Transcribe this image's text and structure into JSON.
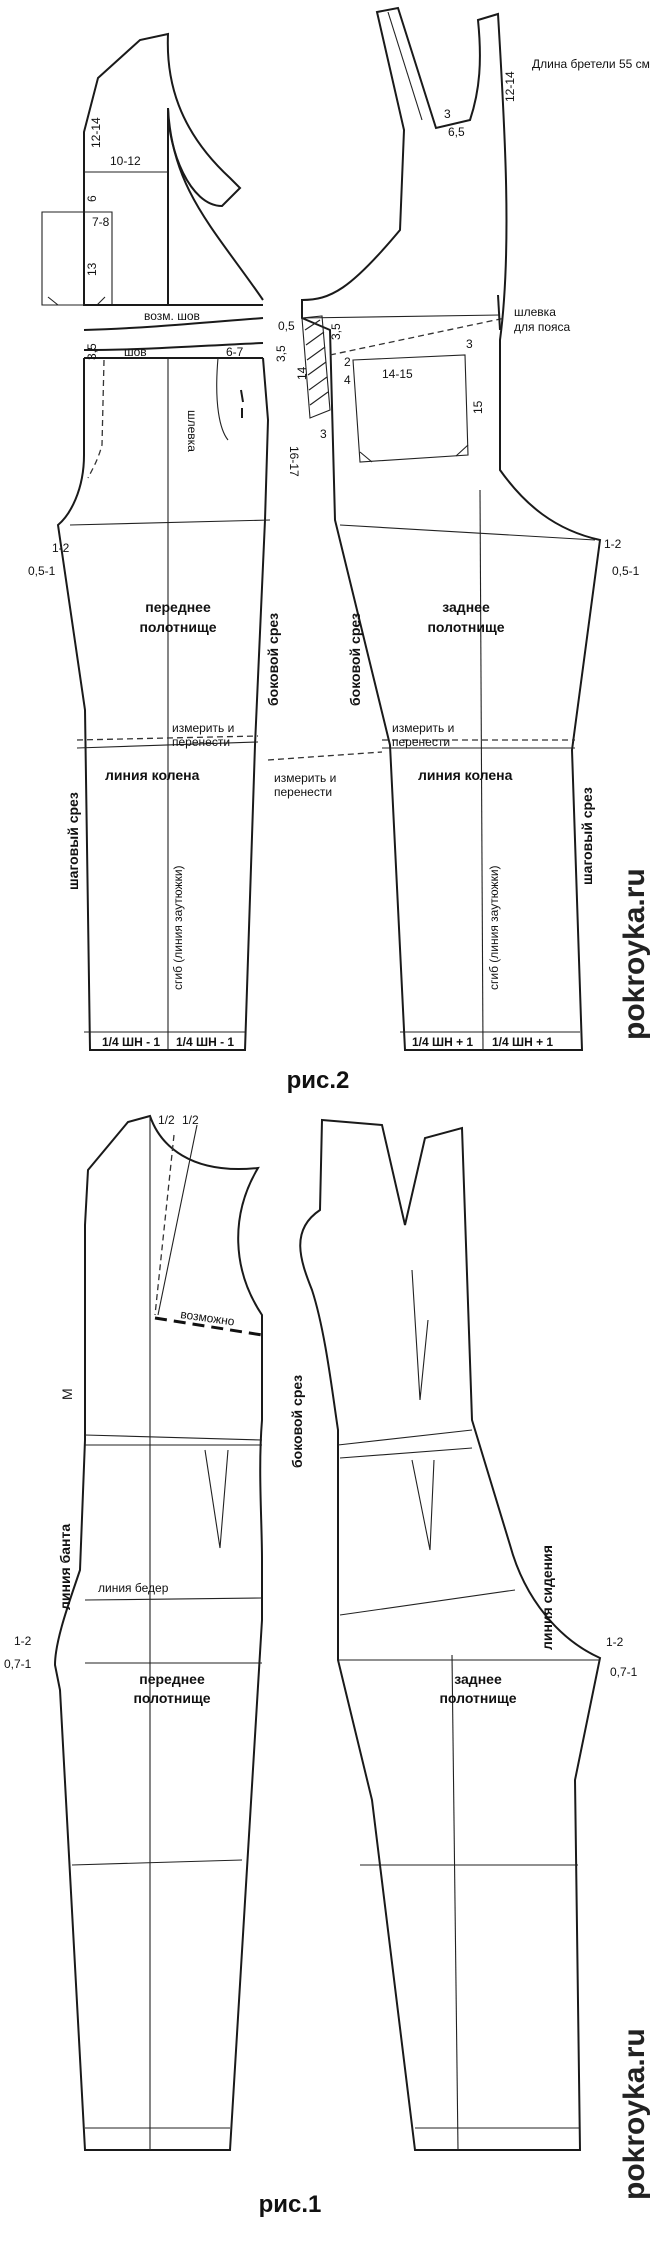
{
  "fig2": {
    "caption": "рис.2",
    "strap_length": "Длина бретели  55 см",
    "front": {
      "title_line1": "переднее",
      "title_line2": "полотнище",
      "side_cut": "боковой срез",
      "inseam": "шаговый срез",
      "knee_line": "линия колена",
      "measure_line1": "измерить и",
      "measure_line2": "перенести",
      "fold": "сгиб (линия заутюжки)",
      "loop": "шлевка",
      "seam_allow": "возм. шов",
      "seam": "шов",
      "hem_left": "1/4 ШН - 1",
      "hem_right": "1/4 ШН - 1",
      "dims": {
        "d1214": "12-14",
        "d1012": "10-12",
        "d6": "6",
        "d78": "7-8",
        "d13": "13",
        "d05": "0,5",
        "d35a": "3,5",
        "d35b": "3,5",
        "d67": "6-7",
        "d1617": "16-17",
        "d12": "1-2",
        "d051": "0,5-1"
      }
    },
    "back": {
      "title_line1": "заднее",
      "title_line2": "полотнище",
      "side_cut": "боковой срез",
      "inseam": "шаговый срез",
      "knee_line": "линия колена",
      "measure_line1": "измерить и",
      "measure_line2": "перенести",
      "fold": "сгиб (линия заутюжки)",
      "belt_loop_line1": "шлевка",
      "belt_loop_line2": "для пояса",
      "hem_left": "1/4 ШН + 1",
      "hem_right": "1/4 ШН + 1",
      "dims": {
        "d3": "3",
        "d65": "6,5",
        "d1214": "12-14",
        "d35": "3,5",
        "d2": "2",
        "d3b": "3",
        "d14": "14",
        "d4": "4",
        "d3c": "3",
        "d1415": "14-15",
        "d15": "15",
        "d12": "1-2",
        "d051": "0,5-1"
      }
    },
    "middle_measure_line1": "измерить и",
    "middle_measure_line2": "перенести"
  },
  "fig1": {
    "caption": "рис.1",
    "half_a": "1/2",
    "half_b": "1/2",
    "possible": "возможно",
    "m_label": "М",
    "bow_line": "линия  банта",
    "hip_line": "линия бедер",
    "side_cut": "боковой срез",
    "seat_line": "линия сидения",
    "front_title_line1": "переднее",
    "front_title_line2": "полотнище",
    "back_title_line1": "заднее",
    "back_title_line2": "полотнище",
    "dims": {
      "left_12": "1-2",
      "left_071": "0,7-1",
      "right_12": "1-2",
      "right_071": "0,7-1"
    }
  },
  "watermarks": [
    "pokroyka.ru",
    "pokroyka.ru"
  ]
}
